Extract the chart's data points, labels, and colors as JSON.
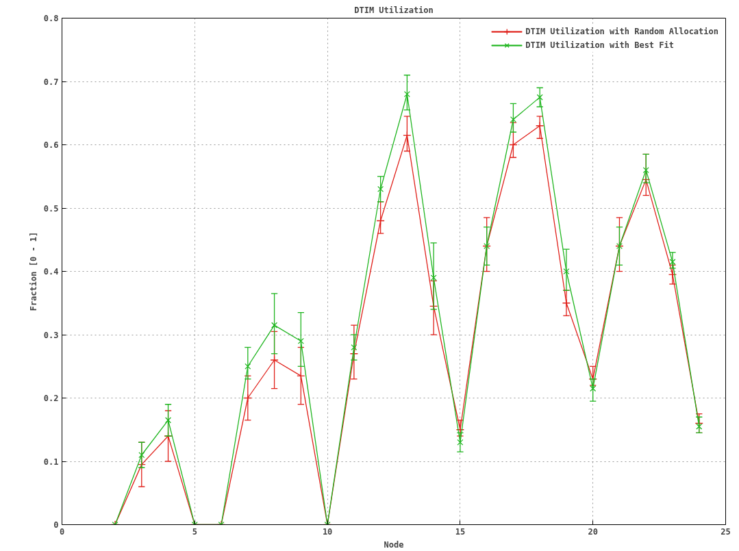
{
  "chart_data": {
    "type": "line",
    "title": "DTIM Utilization",
    "xlabel": "Node",
    "ylabel": "Fraction [0 - 1]",
    "x": [
      2,
      3,
      4,
      5,
      6,
      7,
      8,
      9,
      10,
      11,
      12,
      13,
      14,
      15,
      16,
      17,
      18,
      19,
      20,
      21,
      22,
      23,
      24
    ],
    "xlim": [
      0,
      25
    ],
    "xticks": [
      0,
      5,
      10,
      15,
      20,
      25
    ],
    "ylim": [
      0,
      0.8
    ],
    "yticks": [
      0,
      0.1,
      0.2,
      0.3,
      0.4,
      0.5,
      0.6,
      0.7,
      0.8
    ],
    "grid": true,
    "legend": "top right",
    "series": [
      {
        "name": "DTIM Utilization with Random Allocation",
        "color": "#e0201a",
        "marker": "cross",
        "values": [
          0,
          0.095,
          0.14,
          0,
          0,
          0.2,
          0.26,
          0.235,
          0,
          0.27,
          0.48,
          0.615,
          0.345,
          0.15,
          0.44,
          0.6,
          0.63,
          0.35,
          0.23,
          0.44,
          0.545,
          0.395,
          0.16
        ],
        "errors": [
          null,
          [
            0.06,
            0.13
          ],
          [
            0.1,
            0.18
          ],
          null,
          null,
          [
            0.165,
            0.235
          ],
          [
            0.215,
            0.305
          ],
          [
            0.19,
            0.28
          ],
          null,
          [
            0.23,
            0.315
          ],
          [
            0.46,
            0.51
          ],
          [
            0.59,
            0.645
          ],
          [
            0.3,
            0.385
          ],
          [
            0.14,
            0.165
          ],
          [
            0.4,
            0.485
          ],
          [
            0.58,
            0.635
          ],
          [
            0.61,
            0.645
          ],
          [
            0.33,
            0.37
          ],
          [
            0.22,
            0.25
          ],
          [
            0.4,
            0.485
          ],
          [
            0.52,
            0.585
          ],
          [
            0.38,
            0.41
          ],
          [
            0.145,
            0.175
          ]
        ]
      },
      {
        "name": "DTIM Utilization with Best Fit",
        "color": "#1fb51f",
        "marker": "x",
        "values": [
          0,
          0.11,
          0.165,
          0,
          0,
          0.25,
          0.315,
          0.29,
          0,
          0.28,
          0.53,
          0.68,
          0.39,
          0.13,
          0.44,
          0.64,
          0.675,
          0.4,
          0.215,
          0.44,
          0.56,
          0.415,
          0.155
        ],
        "errors": [
          null,
          [
            0.09,
            0.13
          ],
          [
            0.14,
            0.19
          ],
          null,
          null,
          [
            0.23,
            0.28
          ],
          [
            0.27,
            0.365
          ],
          [
            0.25,
            0.335
          ],
          null,
          [
            0.26,
            0.3
          ],
          [
            0.51,
            0.55
          ],
          [
            0.655,
            0.71
          ],
          [
            0.34,
            0.445
          ],
          [
            0.115,
            0.145
          ],
          [
            0.41,
            0.47
          ],
          [
            0.62,
            0.665
          ],
          [
            0.66,
            0.69
          ],
          [
            0.37,
            0.435
          ],
          [
            0.195,
            0.23
          ],
          [
            0.41,
            0.47
          ],
          [
            0.54,
            0.585
          ],
          [
            0.405,
            0.43
          ],
          [
            0.145,
            0.17
          ]
        ]
      }
    ]
  }
}
